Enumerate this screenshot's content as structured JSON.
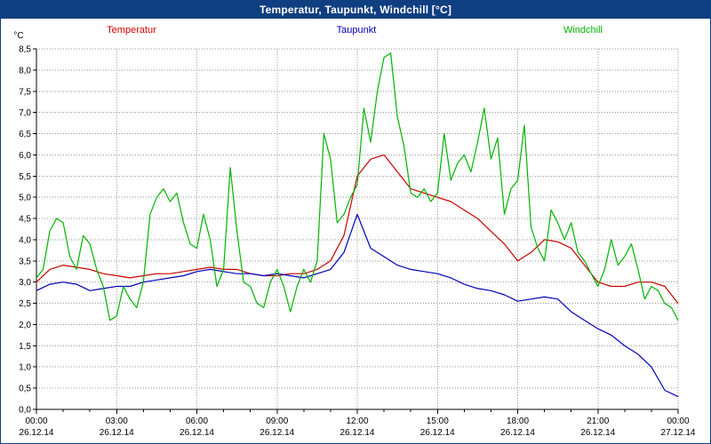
{
  "title_bar": {
    "title": "Temperatur, Taupunkt, Windchill [°C]",
    "background": "#0f3f80",
    "text_color": "#ffffff"
  },
  "legend": [
    {
      "label": "Temperatur",
      "color": "#cc0000"
    },
    {
      "label": "Taupunkt",
      "color": "#0000bb"
    },
    {
      "label": "Windchill",
      "color": "#00b400"
    }
  ],
  "chart_data": {
    "type": "line",
    "title": "Temperatur, Taupunkt, Windchill [°C]",
    "xlabel": "",
    "ylabel": "°C",
    "xlim": [
      0,
      24
    ],
    "ylim": [
      0,
      8.5
    ],
    "grid": "dotted",
    "legend_position": "top",
    "y_ticks": {
      "values": [
        0,
        0.5,
        1,
        1.5,
        2,
        2.5,
        3,
        3.5,
        4,
        4.5,
        5,
        5.5,
        6,
        6.5,
        7,
        7.5,
        8,
        8.5
      ],
      "labels": [
        "0,0",
        "0,5",
        "1,0",
        "1,5",
        "2,0",
        "2,5",
        "3,0",
        "3,5",
        "4,0",
        "4,5",
        "5,0",
        "5,5",
        "6,0",
        "6,5",
        "7,0",
        "7,5",
        "8,0",
        "8,5"
      ]
    },
    "x_ticks": {
      "hours": [
        0,
        3,
        6,
        9,
        12,
        15,
        18,
        21,
        24
      ],
      "times": [
        "00:00",
        "03:00",
        "06:00",
        "09:00",
        "12:00",
        "15:00",
        "18:00",
        "21:00",
        "00:00"
      ],
      "dates": [
        "26.12.14",
        "26.12.14",
        "26.12.14",
        "26.12.14",
        "26.12.14",
        "26.12.14",
        "26.12.14",
        "26.12.14",
        "27.12.14"
      ],
      "minor_tick_every_hours": 1
    },
    "series": [
      {
        "name": "Temperatur",
        "color": "#cc0000",
        "x_start_hour": 0,
        "x_step_hours": 0.5,
        "values": [
          3.0,
          3.3,
          3.4,
          3.35,
          3.3,
          3.2,
          3.15,
          3.1,
          3.15,
          3.2,
          3.2,
          3.25,
          3.3,
          3.35,
          3.3,
          3.3,
          3.2,
          3.15,
          3.15,
          3.2,
          3.2,
          3.3,
          3.5,
          4.1,
          5.5,
          5.9,
          6.0,
          5.6,
          5.2,
          5.1,
          5.0,
          4.9,
          4.7,
          4.5,
          4.2,
          3.9,
          3.5,
          3.7,
          4.0,
          3.95,
          3.8,
          3.4,
          3.0,
          2.9,
          2.9,
          3.0,
          3.0,
          2.9,
          2.5
        ]
      },
      {
        "name": "Taupunkt",
        "color": "#0000bb",
        "x_start_hour": 0,
        "x_step_hours": 0.5,
        "values": [
          2.8,
          2.95,
          3.0,
          2.95,
          2.8,
          2.85,
          2.9,
          2.9,
          3.0,
          3.05,
          3.1,
          3.15,
          3.25,
          3.3,
          3.25,
          3.2,
          3.2,
          3.15,
          3.2,
          3.15,
          3.1,
          3.2,
          3.3,
          3.7,
          4.6,
          3.8,
          3.6,
          3.4,
          3.3,
          3.25,
          3.2,
          3.1,
          2.95,
          2.85,
          2.8,
          2.7,
          2.55,
          2.6,
          2.65,
          2.6,
          2.3,
          2.1,
          1.9,
          1.75,
          1.5,
          1.3,
          1.0,
          0.45,
          0.3
        ]
      },
      {
        "name": "Windchill",
        "color": "#00b400",
        "x_start_hour": 0,
        "x_step_hours": 0.25,
        "values": [
          3.1,
          3.3,
          4.2,
          4.5,
          4.4,
          3.6,
          3.3,
          4.1,
          3.9,
          3.3,
          2.9,
          2.1,
          2.2,
          2.9,
          2.6,
          2.4,
          3.0,
          4.6,
          5.0,
          5.2,
          4.9,
          5.1,
          4.4,
          3.9,
          3.8,
          4.6,
          4.0,
          2.9,
          3.3,
          5.7,
          4.2,
          3.0,
          2.9,
          2.5,
          2.4,
          3.0,
          3.3,
          2.9,
          2.3,
          2.9,
          3.3,
          3.0,
          3.5,
          6.5,
          5.9,
          4.4,
          4.6,
          5.0,
          5.3,
          7.1,
          6.3,
          7.5,
          8.3,
          8.4,
          6.9,
          6.2,
          5.1,
          5.0,
          5.2,
          4.9,
          5.1,
          6.5,
          5.4,
          5.8,
          6.0,
          5.6,
          6.3,
          7.1,
          5.9,
          6.4,
          4.6,
          5.2,
          5.4,
          6.7,
          4.3,
          3.8,
          3.5,
          4.7,
          4.4,
          4.0,
          4.4,
          3.7,
          3.5,
          3.2,
          2.9,
          3.3,
          4.0,
          3.4,
          3.6,
          3.9,
          3.3,
          2.6,
          2.9,
          2.8,
          2.5,
          2.4,
          2.1
        ]
      }
    ]
  }
}
